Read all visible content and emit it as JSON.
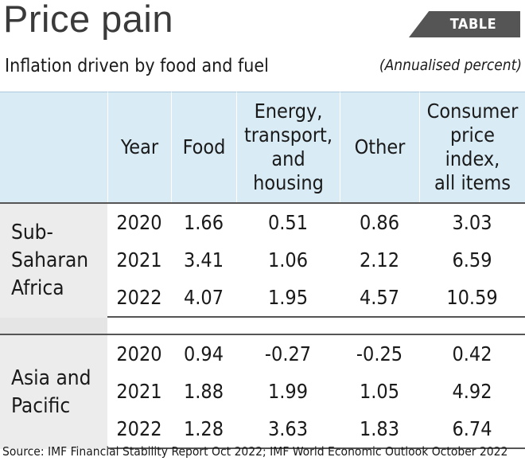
{
  "title": "Price pain",
  "tag": "TABLE",
  "subtitle": "Inflation driven by food and fuel",
  "unit": "(Annualised percent)",
  "source": "Source: IMF Financial Stability Report Oct 2022; IMF World Economic Outlook October 2022",
  "chart_data": {
    "type": "table",
    "columns": [
      "",
      "Year",
      "Food",
      "Energy, transport, and housing",
      "Other",
      "Consumer price index, all items"
    ],
    "header_lines": [
      [
        ""
      ],
      [
        "Year"
      ],
      [
        "Food"
      ],
      [
        "Energy,",
        "transport,",
        "and",
        "housing"
      ],
      [
        "Other"
      ],
      [
        "Consumer",
        "price",
        "index,",
        "all items"
      ]
    ],
    "groups": [
      {
        "region": "Sub-Saharan Africa",
        "region_lines": [
          "Sub-",
          "Saharan",
          "Africa"
        ],
        "rows": [
          {
            "year": "2020",
            "food": "1.66",
            "energy": "0.51",
            "other": "0.86",
            "cpi": "3.03"
          },
          {
            "year": "2021",
            "food": "3.41",
            "energy": "1.06",
            "other": "2.12",
            "cpi": "6.59"
          },
          {
            "year": "2022",
            "food": "4.07",
            "energy": "1.95",
            "other": "4.57",
            "cpi": "10.59"
          }
        ]
      },
      {
        "region": "Asia and Pacific",
        "region_lines": [
          "Asia and",
          "Pacific"
        ],
        "rows": [
          {
            "year": "2020",
            "food": "0.94",
            "energy": "-0.27",
            "other": "-0.25",
            "cpi": "0.42"
          },
          {
            "year": "2021",
            "food": "1.88",
            "energy": "1.99",
            "other": "1.05",
            "cpi": "4.92"
          },
          {
            "year": "2022",
            "food": "1.28",
            "energy": "3.63",
            "other": "1.83",
            "cpi": "6.74"
          }
        ]
      }
    ]
  }
}
